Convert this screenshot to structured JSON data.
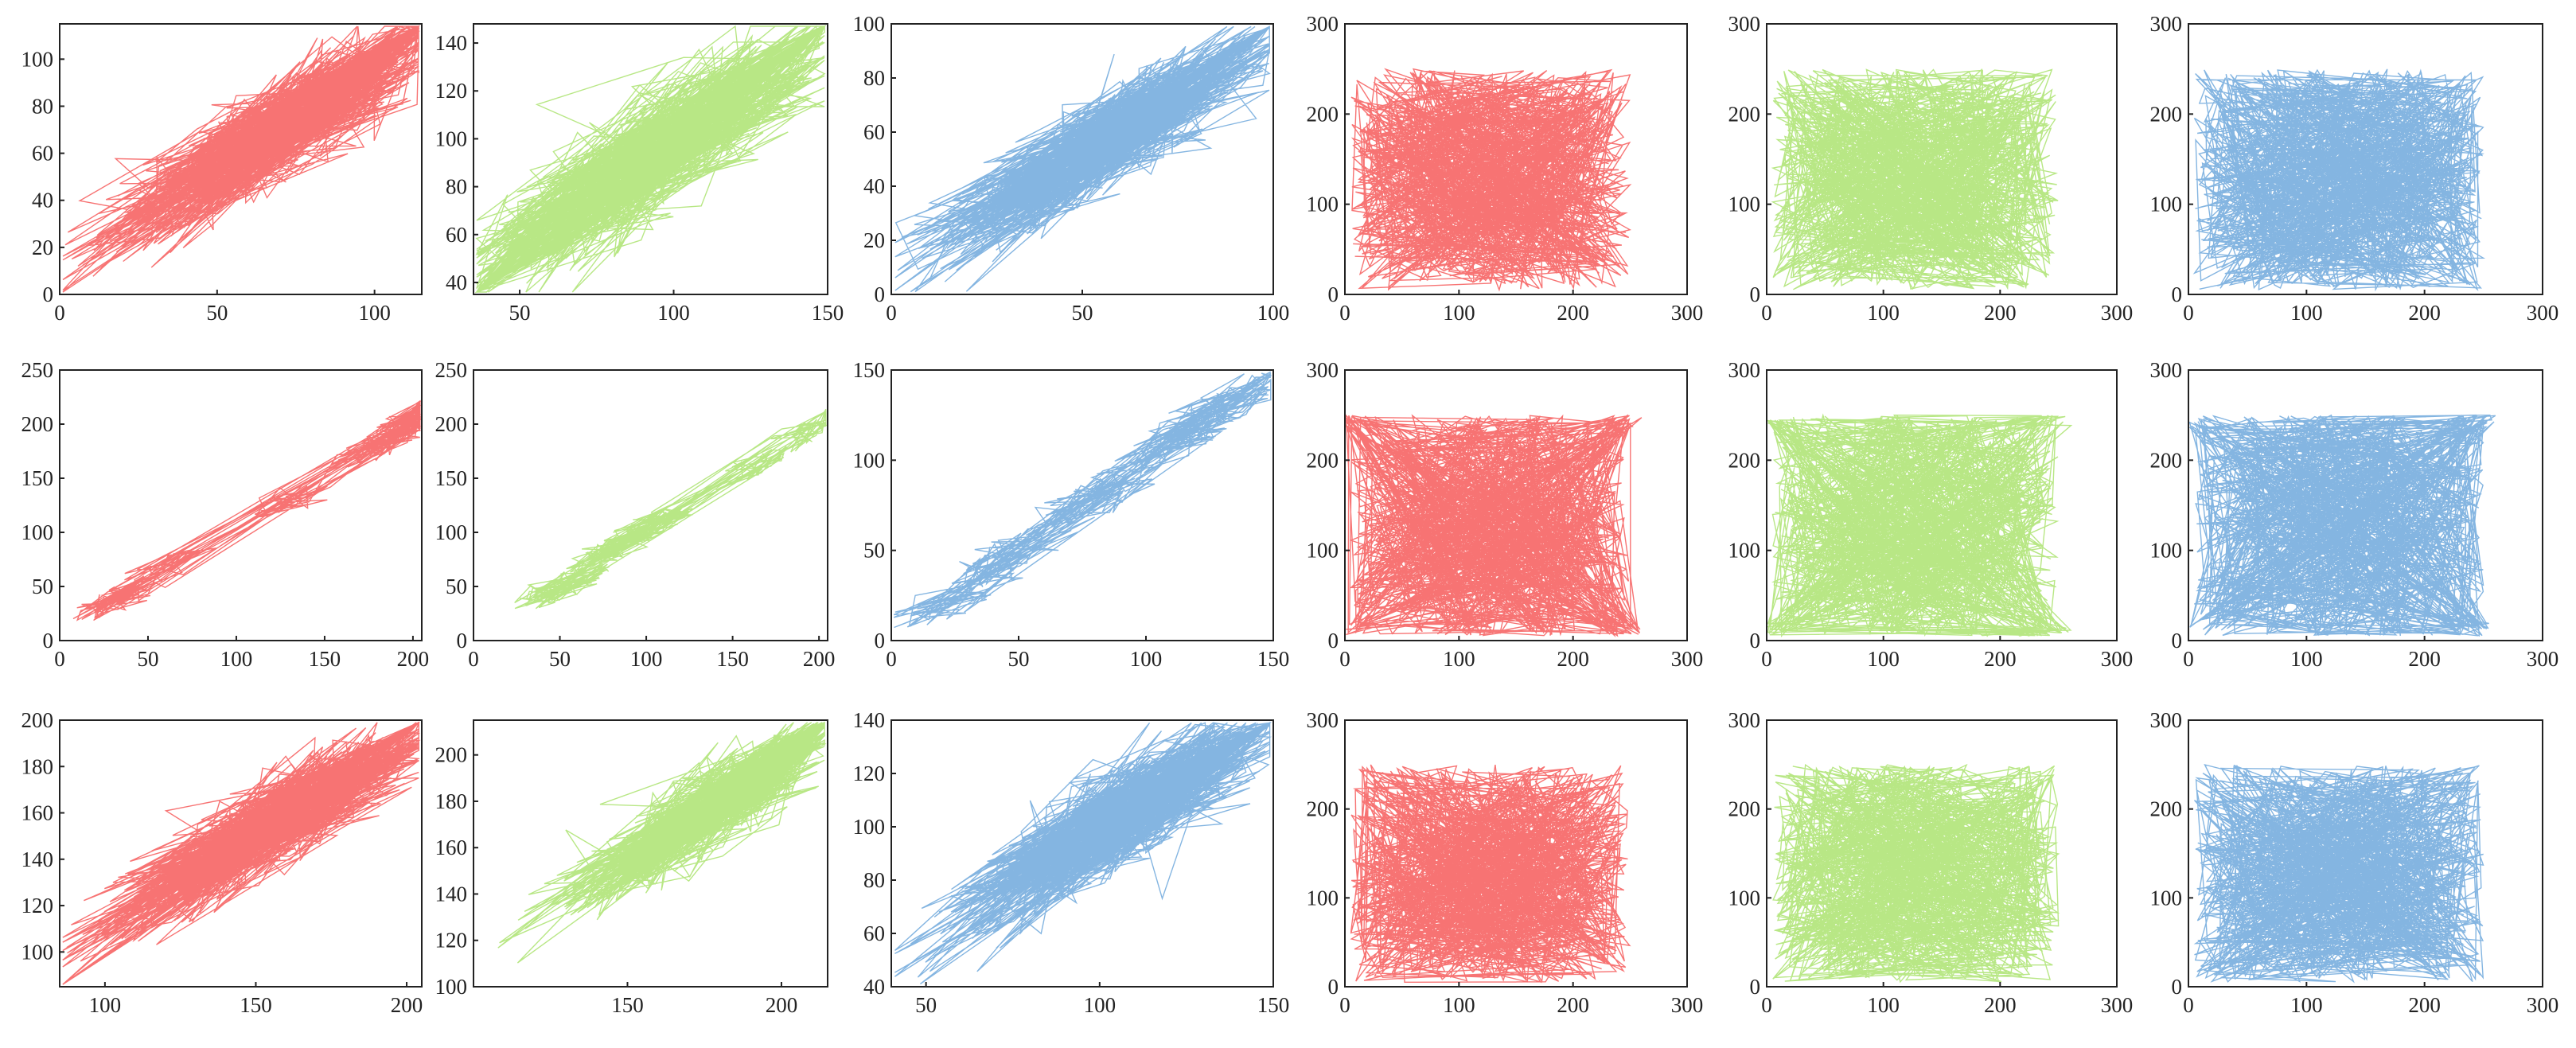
{
  "colors": {
    "red": "#f00000",
    "green": "#7ed321",
    "blue": "#1f78c8"
  },
  "chart_data": [
    {
      "id": "r1c1",
      "type": "line",
      "series_color": "red",
      "xlim": [
        0,
        115
      ],
      "ylim": [
        0,
        115
      ],
      "xticks": [
        "0",
        "50",
        "100"
      ],
      "yticks": [
        "0",
        "20",
        "40",
        "60",
        "80",
        "100"
      ],
      "pattern": "correlated",
      "data_center": [
        70,
        70
      ],
      "data_spread": [
        28,
        25
      ]
    },
    {
      "id": "r1c2",
      "type": "line",
      "series_color": "green",
      "xlim": [
        35,
        150
      ],
      "ylim": [
        35,
        148
      ],
      "xticks": [
        "50",
        "100",
        "150"
      ],
      "yticks": [
        "40",
        "60",
        "80",
        "100",
        "120",
        "140"
      ],
      "pattern": "correlated",
      "data_center": [
        95,
        95
      ],
      "data_spread": [
        32,
        30
      ]
    },
    {
      "id": "r1c3",
      "type": "line",
      "series_color": "blue",
      "xlim": [
        0,
        100
      ],
      "ylim": [
        0,
        100
      ],
      "xticks": [
        "0",
        "50",
        "100"
      ],
      "yticks": [
        "0",
        "20",
        "40",
        "60",
        "80",
        "100"
      ],
      "pattern": "correlated",
      "data_center": [
        55,
        55
      ],
      "data_spread": [
        22,
        20
      ]
    },
    {
      "id": "r1c4",
      "type": "line",
      "series_color": "red",
      "xlim": [
        0,
        300
      ],
      "ylim": [
        0,
        300
      ],
      "xticks": [
        "0",
        "100",
        "200",
        "300"
      ],
      "yticks": [
        "0",
        "100",
        "200",
        "300"
      ],
      "pattern": "uniform",
      "data_range": [
        5,
        250
      ]
    },
    {
      "id": "r1c5",
      "type": "line",
      "series_color": "green",
      "xlim": [
        0,
        300
      ],
      "ylim": [
        0,
        300
      ],
      "xticks": [
        "0",
        "100",
        "200",
        "300"
      ],
      "yticks": [
        "0",
        "100",
        "200",
        "300"
      ],
      "pattern": "uniform",
      "data_range": [
        5,
        250
      ]
    },
    {
      "id": "r1c6",
      "type": "line",
      "series_color": "blue",
      "xlim": [
        0,
        300
      ],
      "ylim": [
        0,
        300
      ],
      "xticks": [
        "0",
        "100",
        "200",
        "300"
      ],
      "yticks": [
        "0",
        "100",
        "200",
        "300"
      ],
      "pattern": "uniform",
      "data_range": [
        5,
        250
      ]
    },
    {
      "id": "r2c1",
      "type": "line",
      "series_color": "red",
      "xlim": [
        0,
        205
      ],
      "ylim": [
        0,
        250
      ],
      "xticks": [
        "0",
        "50",
        "100",
        "150",
        "200"
      ],
      "yticks": [
        "0",
        "50",
        "100",
        "150",
        "200",
        "250"
      ],
      "pattern": "clusters",
      "clusters": [
        [
          35,
          40
        ],
        [
          60,
          70
        ],
        [
          130,
          130
        ],
        [
          180,
          180
        ],
        [
          200,
          200
        ]
      ]
    },
    {
      "id": "r2c2",
      "type": "line",
      "series_color": "green",
      "xlim": [
        0,
        205
      ],
      "ylim": [
        0,
        250
      ],
      "xticks": [
        "0",
        "50",
        "100",
        "150",
        "200"
      ],
      "yticks": [
        "0",
        "50",
        "100",
        "150",
        "200",
        "250"
      ],
      "pattern": "clusters",
      "clusters": [
        [
          50,
          50
        ],
        [
          80,
          85
        ],
        [
          100,
          105
        ],
        [
          160,
          160
        ],
        [
          195,
          195
        ]
      ]
    },
    {
      "id": "r2c3",
      "type": "line",
      "series_color": "blue",
      "xlim": [
        0,
        150
      ],
      "ylim": [
        0,
        150
      ],
      "xticks": [
        "0",
        "50",
        "100",
        "150"
      ],
      "yticks": [
        "0",
        "50",
        "100",
        "150"
      ],
      "pattern": "clusters",
      "clusters": [
        [
          25,
          25
        ],
        [
          50,
          50
        ],
        [
          80,
          80
        ],
        [
          115,
          115
        ],
        [
          130,
          130
        ]
      ]
    },
    {
      "id": "r2c4",
      "type": "line",
      "series_color": "red",
      "xlim": [
        0,
        300
      ],
      "ylim": [
        0,
        300
      ],
      "xticks": [
        "0",
        "100",
        "200",
        "300"
      ],
      "yticks": [
        "0",
        "100",
        "200",
        "300"
      ],
      "pattern": "zigzag",
      "data_range": [
        5,
        250
      ]
    },
    {
      "id": "r2c5",
      "type": "line",
      "series_color": "green",
      "xlim": [
        0,
        300
      ],
      "ylim": [
        0,
        300
      ],
      "xticks": [
        "0",
        "100",
        "200",
        "300"
      ],
      "yticks": [
        "0",
        "100",
        "200",
        "300"
      ],
      "pattern": "zigzag",
      "data_range": [
        5,
        250
      ]
    },
    {
      "id": "r2c6",
      "type": "line",
      "series_color": "blue",
      "xlim": [
        0,
        300
      ],
      "ylim": [
        0,
        300
      ],
      "xticks": [
        "0",
        "100",
        "200",
        "300"
      ],
      "yticks": [
        "0",
        "100",
        "200",
        "300"
      ],
      "pattern": "zigzag",
      "data_range": [
        5,
        250
      ]
    },
    {
      "id": "r3c1",
      "type": "line",
      "series_color": "red",
      "xlim": [
        85,
        205
      ],
      "ylim": [
        85,
        200
      ],
      "xticks": [
        "100",
        "150",
        "200"
      ],
      "yticks": [
        "100",
        "120",
        "140",
        "160",
        "180",
        "200"
      ],
      "pattern": "correlated",
      "data_center": [
        155,
        155
      ],
      "data_spread": [
        28,
        22
      ]
    },
    {
      "id": "r3c2",
      "type": "line",
      "series_color": "green",
      "xlim": [
        100,
        215
      ],
      "ylim": [
        100,
        215
      ],
      "xticks": [
        "150",
        "200"
      ],
      "yticks": [
        "100",
        "120",
        "140",
        "160",
        "180",
        "200"
      ],
      "pattern": "correlated",
      "data_center": [
        178,
        178
      ],
      "data_spread": [
        22,
        20
      ]
    },
    {
      "id": "r3c3",
      "type": "line",
      "series_color": "blue",
      "xlim": [
        40,
        150
      ],
      "ylim": [
        40,
        140
      ],
      "xticks": [
        "50",
        "100",
        "150"
      ],
      "yticks": [
        "40",
        "60",
        "80",
        "100",
        "120",
        "140"
      ],
      "pattern": "correlated",
      "data_center": [
        105,
        103
      ],
      "data_spread": [
        25,
        22
      ]
    },
    {
      "id": "r3c4",
      "type": "line",
      "series_color": "red",
      "xlim": [
        0,
        300
      ],
      "ylim": [
        0,
        300
      ],
      "xticks": [
        "0",
        "100",
        "200",
        "300"
      ],
      "yticks": [
        "0",
        "100",
        "200",
        "300"
      ],
      "pattern": "uniform",
      "data_range": [
        5,
        250
      ]
    },
    {
      "id": "r3c5",
      "type": "line",
      "series_color": "green",
      "xlim": [
        0,
        300
      ],
      "ylim": [
        0,
        300
      ],
      "xticks": [
        "0",
        "100",
        "200",
        "300"
      ],
      "yticks": [
        "0",
        "100",
        "200",
        "300"
      ],
      "pattern": "uniform",
      "data_range": [
        5,
        250
      ]
    },
    {
      "id": "r3c6",
      "type": "line",
      "series_color": "blue",
      "xlim": [
        0,
        300
      ],
      "ylim": [
        0,
        300
      ],
      "xticks": [
        "0",
        "100",
        "200",
        "300"
      ],
      "yticks": [
        "0",
        "100",
        "200",
        "300"
      ],
      "pattern": "uniform",
      "data_range": [
        5,
        250
      ]
    }
  ]
}
